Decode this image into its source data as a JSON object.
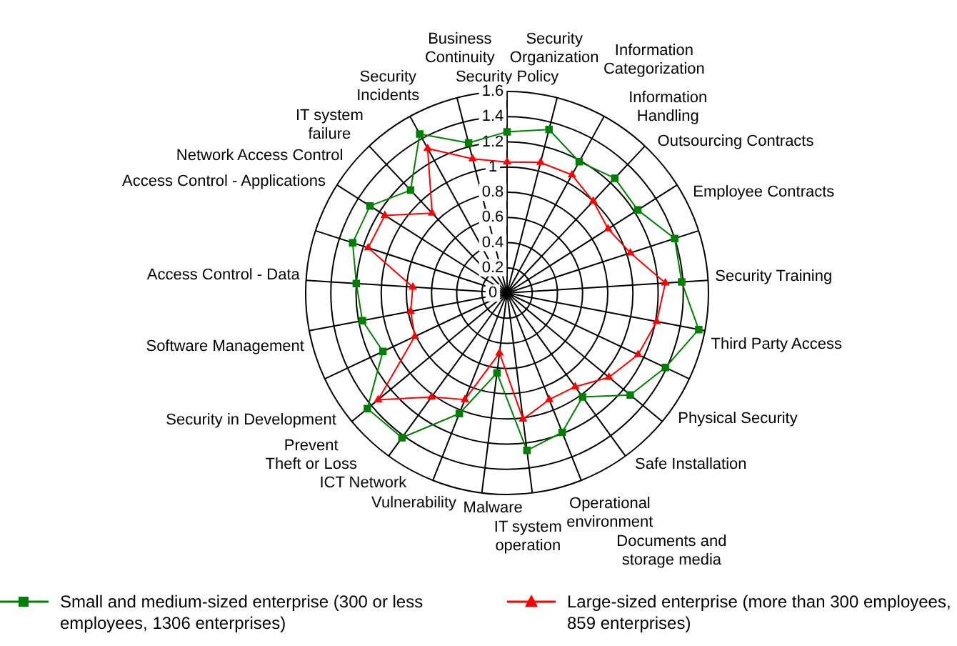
{
  "chart_data": {
    "type": "radar",
    "categories": [
      "Security Policy",
      "Security Organization",
      "Information Categorization",
      "Information Handling",
      "Outsourcing Contracts",
      "Employee Contracts",
      "Security Training",
      "Third Party Access",
      "Physical Security",
      "Safe Installation",
      "Documents and storage media",
      "Operational environment",
      "IT system operation",
      "Malware",
      "Vulnerability",
      "ICT Network",
      "Prevent Theft or Loss",
      "Security in Development",
      "Software Management",
      "Access Control - Data",
      "Access Control - Applications",
      "Network Access Control",
      "IT system failure",
      "Security Incidents",
      "Business Continuity"
    ],
    "series": [
      {
        "name": "Small and medium-sized enterprise (300 or less employees, 1306 enterprises)",
        "color": "#008000",
        "marker": "square",
        "values": [
          1.28,
          1.34,
          1.19,
          1.25,
          1.23,
          1.4,
          1.39,
          1.55,
          1.39,
          1.27,
          1.02,
          1.19,
          1.26,
          0.64,
          1.03,
          1.42,
          1.44,
          1.09,
          1.17,
          1.2,
          1.29,
          1.29,
          1.12,
          1.44,
          1.23
        ]
      },
      {
        "name": "Large-sized enterprise (more than 300 employees, 859 enterprises)",
        "color": "#ff0000",
        "marker": "triangle",
        "values": [
          1.04,
          1.07,
          1.07,
          1.0,
          0.95,
          1.03,
          1.26,
          1.21,
          1.15,
          1.05,
          0.92,
          0.91,
          1.01,
          0.48,
          0.91,
          1.02,
          1.33,
          0.81,
          0.78,
          0.75,
          1.16,
          1.15,
          0.87,
          1.31,
          1.1
        ]
      }
    ],
    "ylim": [
      0,
      1.6
    ],
    "yticks": [
      0,
      0.2,
      0.4,
      0.6,
      0.8,
      1,
      1.2,
      1.4,
      1.6
    ],
    "grid": true,
    "legend": "bottom"
  }
}
